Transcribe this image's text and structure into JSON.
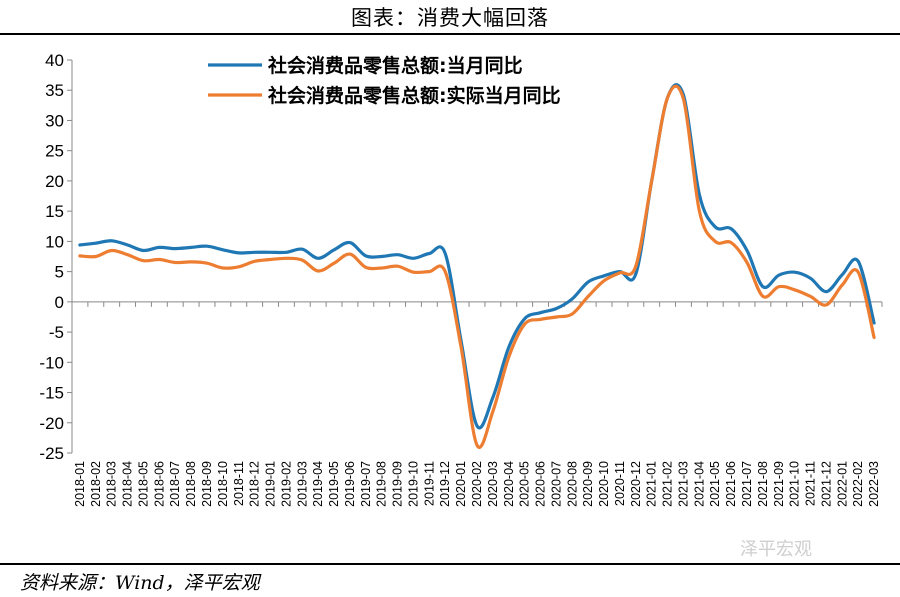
{
  "title": "图表：消费大幅回落",
  "source": "资料来源：Wind，泽平宏观",
  "watermark": "泽平宏观",
  "chart_data": {
    "type": "line",
    "title": "图表：消费大幅回落",
    "xlabel": "",
    "ylabel": "",
    "ylim": [
      -25,
      40
    ],
    "yticks": [
      -25,
      -20,
      -15,
      -10,
      -5,
      0,
      5,
      10,
      15,
      20,
      25,
      30,
      35,
      40
    ],
    "grid": false,
    "legend_position": "top",
    "x": [
      "2018-01",
      "2018-02",
      "2018-03",
      "2018-04",
      "2018-05",
      "2018-06",
      "2018-07",
      "2018-08",
      "2018-09",
      "2018-10",
      "2018-11",
      "2018-12",
      "2019-01",
      "2019-02",
      "2019-03",
      "2019-04",
      "2019-05",
      "2019-06",
      "2019-07",
      "2019-08",
      "2019-09",
      "2019-10",
      "2019-11",
      "2019-12",
      "2020-01",
      "2020-02",
      "2020-03",
      "2020-04",
      "2020-05",
      "2020-06",
      "2020-07",
      "2020-08",
      "2020-09",
      "2020-10",
      "2020-11",
      "2020-12",
      "2021-01",
      "2021-02",
      "2021-03",
      "2021-04",
      "2021-05",
      "2021-06",
      "2021-07",
      "2021-08",
      "2021-09",
      "2021-10",
      "2021-11",
      "2021-12",
      "2022-01",
      "2022-02",
      "2022-03"
    ],
    "series": [
      {
        "name": "社会消费品零售总额:当月同比",
        "color": "#1f77b4",
        "values": [
          9.4,
          9.7,
          10.1,
          9.4,
          8.5,
          9.0,
          8.8,
          9.0,
          9.2,
          8.6,
          8.1,
          8.2,
          8.2,
          8.2,
          8.7,
          7.2,
          8.6,
          9.8,
          7.6,
          7.5,
          7.8,
          7.2,
          8.0,
          8.0,
          -6.5,
          -20.5,
          -15.8,
          -7.5,
          -2.8,
          -1.8,
          -1.1,
          0.5,
          3.3,
          4.3,
          5.0,
          4.6,
          20.0,
          33.8,
          34.2,
          17.7,
          12.4,
          12.1,
          8.5,
          2.5,
          4.4,
          4.9,
          3.9,
          1.7,
          4.5,
          6.7,
          -3.5
        ]
      },
      {
        "name": "社会消费品零售总额:实际当月同比",
        "color": "#ed7d31",
        "values": [
          7.6,
          7.5,
          8.5,
          7.8,
          6.8,
          7.0,
          6.5,
          6.6,
          6.4,
          5.6,
          5.8,
          6.7,
          7.0,
          7.2,
          6.9,
          5.1,
          6.4,
          7.9,
          5.7,
          5.6,
          5.9,
          4.9,
          5.0,
          5.0,
          -7.5,
          -23.7,
          -18.1,
          -9.1,
          -3.7,
          -2.9,
          -2.5,
          -2.0,
          0.9,
          3.5,
          4.8,
          5.9,
          20.0,
          33.8,
          33.5,
          15.0,
          10.0,
          9.8,
          6.5,
          0.9,
          2.5,
          2.0,
          0.9,
          -0.5,
          2.8,
          4.9,
          -5.9
        ]
      }
    ]
  }
}
